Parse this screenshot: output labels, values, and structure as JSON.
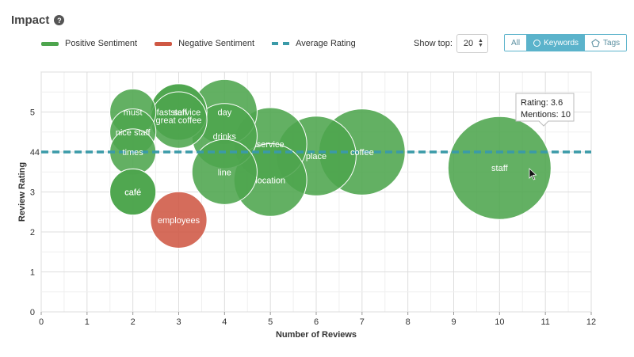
{
  "header": {
    "title": "Impact",
    "help_icon": "?"
  },
  "legend": {
    "positive": "Positive Sentiment",
    "negative": "Negative Sentiment",
    "average": "Average Rating"
  },
  "controls": {
    "show_top_label": "Show top:",
    "show_top_value": "20",
    "filters": [
      {
        "label": "All",
        "active": false,
        "icon": ""
      },
      {
        "label": "Keywords",
        "active": true,
        "icon": "circle-icon"
      },
      {
        "label": "Tags",
        "active": false,
        "icon": "pentagon-icon"
      }
    ]
  },
  "colors": {
    "positive": "#4da54d",
    "negative": "#cf5844",
    "average": "#3a9aa8",
    "grid": "#e6e6e6",
    "axis": "#999999"
  },
  "tooltip": {
    "rating": "Rating: 3.6",
    "mentions": "Mentions: 10"
  },
  "chart_data": {
    "type": "scatter",
    "variant": "bubble",
    "xlabel": "Number of Reviews",
    "ylabel": "Review Rating",
    "xlim": [
      0,
      12
    ],
    "ylim": [
      0,
      6
    ],
    "x_ticks": [
      0,
      1,
      2,
      3,
      4,
      5,
      6,
      7,
      8,
      9,
      10,
      11,
      12
    ],
    "y_ticks": [
      0,
      1,
      2,
      3,
      4,
      5
    ],
    "average_rating": 4,
    "average_label": "4",
    "grid": true,
    "points": [
      {
        "label": "must",
        "x": 2,
        "y": 5,
        "size": 2,
        "sentiment": "positive"
      },
      {
        "label": "nice staff",
        "x": 2,
        "y": 4.5,
        "size": 2,
        "sentiment": "positive"
      },
      {
        "label": "times",
        "x": 2,
        "y": 4,
        "size": 2,
        "sentiment": "positive"
      },
      {
        "label": "café",
        "x": 2,
        "y": 3,
        "size": 2,
        "sentiment": "positive"
      },
      {
        "label": "cafe",
        "x": 2,
        "y": 3,
        "size": 2,
        "sentiment": "positive"
      },
      {
        "label": "fast service",
        "x": 3,
        "y": 5,
        "size": 3,
        "sentiment": "positive"
      },
      {
        "label": "staff",
        "x": 3,
        "y": 5,
        "size": 3,
        "sentiment": "positive"
      },
      {
        "label": "great coffee",
        "x": 3,
        "y": 4.8,
        "size": 3,
        "sentiment": "positive"
      },
      {
        "label": "employees",
        "x": 3,
        "y": 2.3,
        "size": 3,
        "sentiment": "negative"
      },
      {
        "label": "day",
        "x": 4,
        "y": 5,
        "size": 4,
        "sentiment": "positive"
      },
      {
        "label": "drinks",
        "x": 4,
        "y": 4.4,
        "size": 4,
        "sentiment": "positive"
      },
      {
        "label": "line",
        "x": 4,
        "y": 3.5,
        "size": 4,
        "sentiment": "positive"
      },
      {
        "label": "service",
        "x": 5,
        "y": 4.2,
        "size": 5,
        "sentiment": "positive"
      },
      {
        "label": "location",
        "x": 5,
        "y": 3.3,
        "size": 5,
        "sentiment": "positive"
      },
      {
        "label": "place",
        "x": 6,
        "y": 3.9,
        "size": 6,
        "sentiment": "positive"
      },
      {
        "label": "coffee",
        "x": 7,
        "y": 4,
        "size": 7,
        "sentiment": "positive"
      },
      {
        "label": "staff",
        "x": 10,
        "y": 3.6,
        "size": 10,
        "sentiment": "positive"
      }
    ]
  }
}
